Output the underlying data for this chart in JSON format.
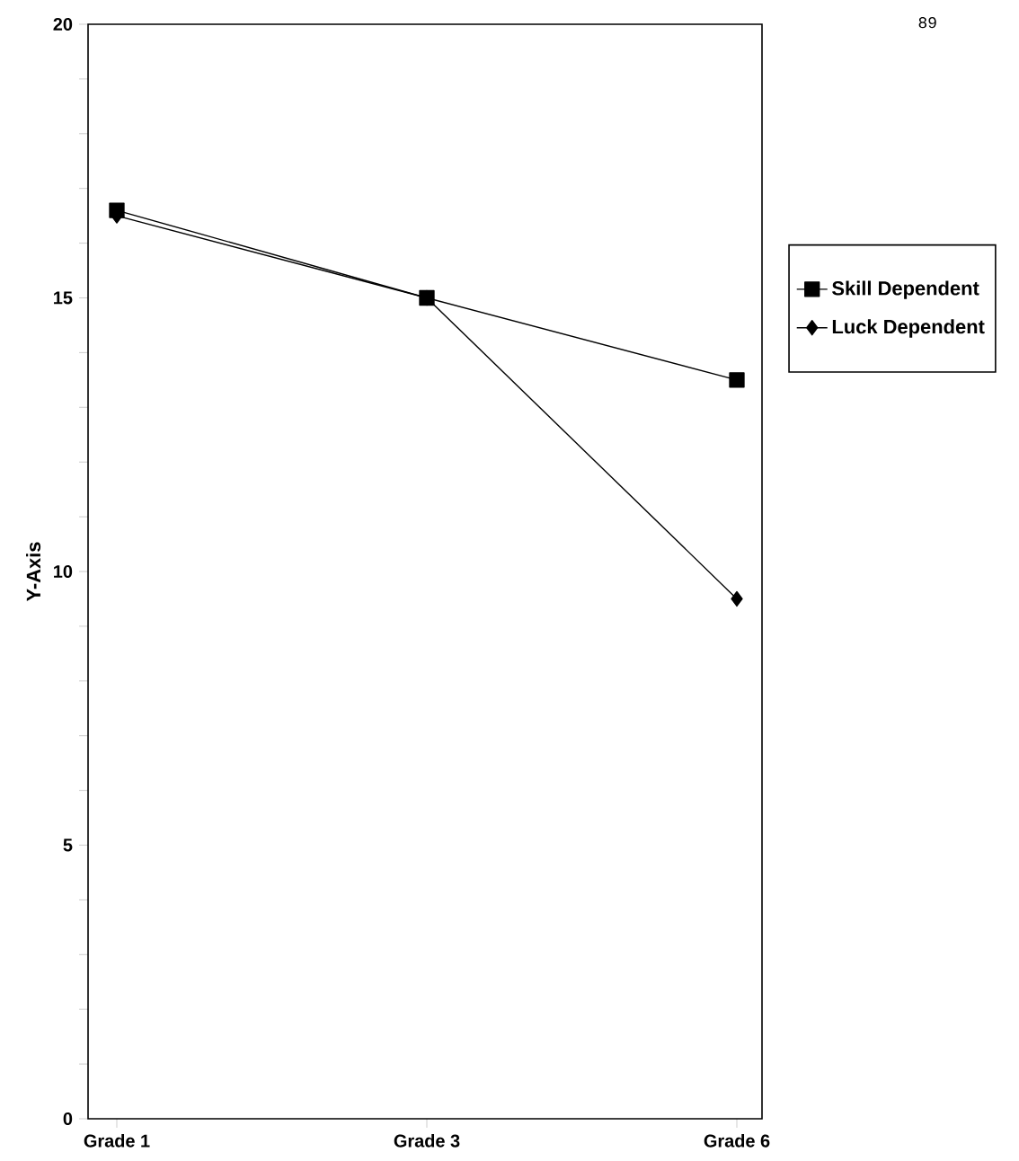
{
  "chart_data": {
    "type": "line",
    "ylabel": "Y-Axis",
    "categories": [
      "Grade 1",
      "Grade 3",
      "Grade 6"
    ],
    "series": [
      {
        "name": "Skill Dependent",
        "color": "#000000",
        "marker": "square",
        "values": [
          16.6,
          15,
          13.5
        ]
      },
      {
        "name": "Luck Dependent",
        "color": "#000000",
        "marker": "diamond",
        "values": [
          16.5,
          15,
          9.5
        ]
      }
    ],
    "ylim": [
      0,
      20
    ],
    "yticks": [
      0,
      {
        "value": 1,
        "label": null
      },
      {
        "value": 2,
        "label": null
      },
      {
        "value": 3,
        "label": null
      },
      {
        "value": 4,
        "label": null
      },
      5,
      {
        "value": 6,
        "label": null
      },
      {
        "value": 7,
        "label": null
      },
      {
        "value": 8,
        "label": null
      },
      {
        "value": 9,
        "label": null
      },
      10,
      {
        "value": 11,
        "label": null
      },
      {
        "value": 12,
        "label": null
      },
      {
        "value": 13,
        "label": null
      },
      {
        "value": 14,
        "label": null
      },
      15,
      {
        "value": 16,
        "label": null
      },
      {
        "value": 17,
        "label": null
      },
      {
        "value": 18,
        "label": null
      },
      {
        "value": 19,
        "label": null
      },
      20
    ],
    "grid": false,
    "legend": "right",
    "line_style": "solid",
    "annotations": [
      "89"
    ]
  }
}
